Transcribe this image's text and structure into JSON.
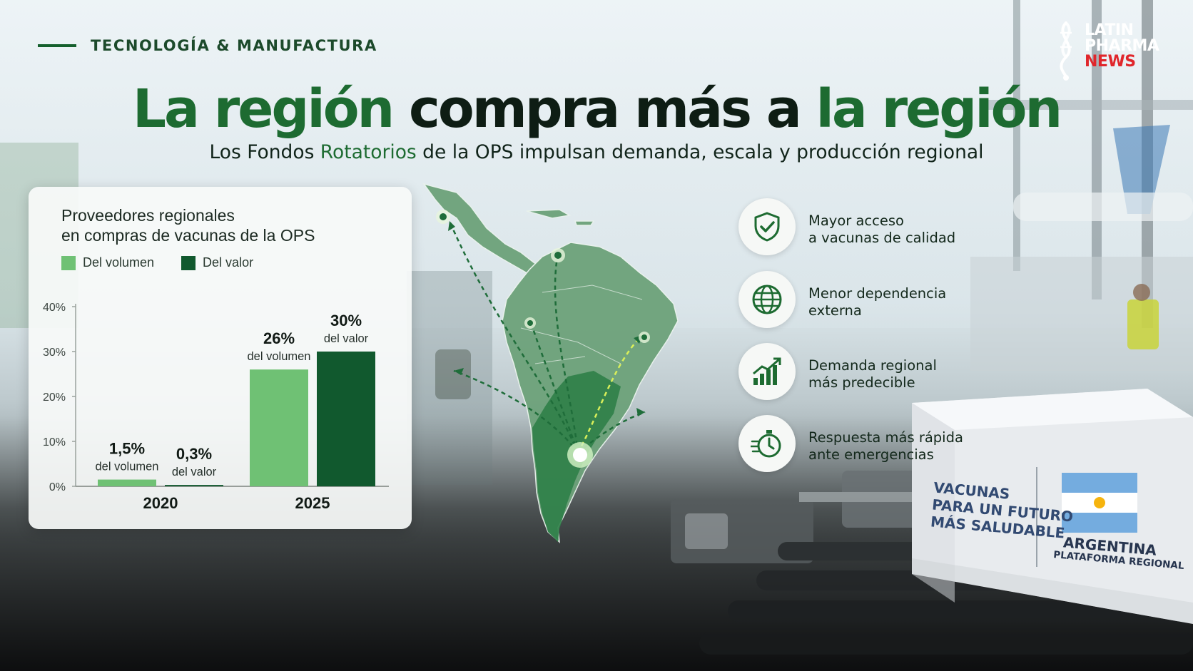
{
  "header": {
    "section_label": "TECNOLOGÍA & MANUFACTURA",
    "title_part1": "La región",
    "title_part2": "compra más a",
    "title_part3": "la región",
    "subtitle_part1": "Los Fondos ",
    "subtitle_highlight": "Rotatorios",
    "subtitle_part2": " de la OPS impulsan demanda, escala y producción regional"
  },
  "logo": {
    "line1": "LATIN",
    "line2": "PHARMA",
    "line3": "NEWS"
  },
  "colors": {
    "brand_green": "#1d6b31",
    "light_green": "#6fc174",
    "dark_green": "#11592e",
    "logo_red": "#e0262b"
  },
  "chart_data": {
    "type": "bar",
    "title_line1": "Proveedores regionales",
    "title_line2": "en compras de vacunas de la OPS",
    "categories": [
      "2020",
      "2025"
    ],
    "series": [
      {
        "name": "Del volumen",
        "color": "#6fc174",
        "values": [
          1.5,
          26
        ],
        "labels": [
          "1,5%",
          "26%"
        ],
        "sublabel": "del volumen"
      },
      {
        "name": "Del valor",
        "color": "#11592e",
        "values": [
          0.3,
          30
        ],
        "labels": [
          "0,3%",
          "30%"
        ],
        "sublabel": "del valor"
      }
    ],
    "yticks": [
      "0%",
      "10%",
      "20%",
      "30%",
      "40%"
    ],
    "ylim": [
      0,
      40
    ],
    "grid": false,
    "legend": "top-left"
  },
  "benefits": [
    {
      "icon": "shield-check-icon",
      "label": "Mayor acceso\na vacunas de calidad"
    },
    {
      "icon": "globe-icon",
      "label": "Menor dependencia\nexterna"
    },
    {
      "icon": "growth-bars-icon",
      "label": "Demanda regional\nmás predecible"
    },
    {
      "icon": "stopwatch-icon",
      "label": "Respuesta más rápida\nante emergencias"
    }
  ],
  "box": {
    "left_text": "VACUNAS\nPARA UN FUTURO\nMÁS SALUDABLE",
    "country": "ARGENTINA",
    "platform": "PLATAFORMA REGIONAL"
  }
}
